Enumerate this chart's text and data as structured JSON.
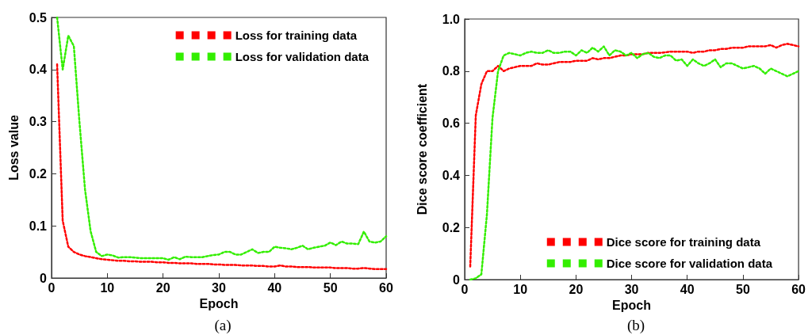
{
  "chart_data": [
    {
      "type": "line",
      "title": "(a)",
      "xlabel": "Epoch",
      "ylabel": "Loss value",
      "x": [
        1,
        2,
        3,
        4,
        5,
        6,
        7,
        8,
        9,
        10,
        11,
        12,
        13,
        14,
        15,
        16,
        17,
        18,
        19,
        20,
        21,
        22,
        23,
        24,
        25,
        26,
        27,
        28,
        29,
        30,
        31,
        32,
        33,
        34,
        35,
        36,
        37,
        38,
        39,
        40,
        41,
        42,
        43,
        44,
        45,
        46,
        47,
        48,
        49,
        50,
        51,
        52,
        53,
        54,
        55,
        56,
        57,
        58,
        59,
        60
      ],
      "series": [
        {
          "name": "Loss for training data",
          "color": "#ff0000",
          "values": [
            0.41,
            0.11,
            0.06,
            0.05,
            0.045,
            0.042,
            0.04,
            0.038,
            0.036,
            0.035,
            0.034,
            0.033,
            0.033,
            0.032,
            0.032,
            0.031,
            0.031,
            0.031,
            0.03,
            0.03,
            0.029,
            0.029,
            0.028,
            0.028,
            0.028,
            0.027,
            0.027,
            0.027,
            0.026,
            0.026,
            0.025,
            0.025,
            0.025,
            0.024,
            0.024,
            0.024,
            0.023,
            0.023,
            0.022,
            0.022,
            0.024,
            0.022,
            0.022,
            0.021,
            0.021,
            0.021,
            0.02,
            0.02,
            0.02,
            0.02,
            0.019,
            0.019,
            0.019,
            0.018,
            0.018,
            0.019,
            0.018,
            0.017,
            0.017,
            0.017
          ]
        },
        {
          "name": "Loss for validation data",
          "color": "#33ee00",
          "values": [
            0.5,
            0.4,
            0.465,
            0.445,
            0.3,
            0.17,
            0.09,
            0.05,
            0.042,
            0.045,
            0.043,
            0.039,
            0.04,
            0.04,
            0.039,
            0.038,
            0.038,
            0.038,
            0.038,
            0.038,
            0.035,
            0.04,
            0.036,
            0.041,
            0.04,
            0.04,
            0.04,
            0.042,
            0.044,
            0.045,
            0.05,
            0.05,
            0.045,
            0.045,
            0.05,
            0.055,
            0.048,
            0.05,
            0.05,
            0.06,
            0.058,
            0.057,
            0.055,
            0.058,
            0.062,
            0.055,
            0.058,
            0.06,
            0.062,
            0.068,
            0.063,
            0.07,
            0.066,
            0.066,
            0.065,
            0.089,
            0.07,
            0.068,
            0.07,
            0.08
          ]
        }
      ],
      "xlim": [
        0,
        60
      ],
      "xticks": [
        0,
        10,
        20,
        30,
        40,
        50,
        60
      ],
      "ylim": [
        0,
        0.5
      ],
      "yticks": [
        0,
        0.1,
        0.2,
        0.3,
        0.4,
        0.5
      ],
      "grid": false,
      "legend": "top right",
      "marker": "none",
      "line_style": "dotted"
    },
    {
      "type": "line",
      "title": "(b)",
      "xlabel": "Epoch",
      "ylabel": "Dice score coefficient",
      "x": [
        1,
        2,
        3,
        4,
        5,
        6,
        7,
        8,
        9,
        10,
        11,
        12,
        13,
        14,
        15,
        16,
        17,
        18,
        19,
        20,
        21,
        22,
        23,
        24,
        25,
        26,
        27,
        28,
        29,
        30,
        31,
        32,
        33,
        34,
        35,
        36,
        37,
        38,
        39,
        40,
        41,
        42,
        43,
        44,
        45,
        46,
        47,
        48,
        49,
        50,
        51,
        52,
        53,
        54,
        55,
        56,
        57,
        58,
        59,
        60
      ],
      "series": [
        {
          "name": "Dice score for training data",
          "color": "#ff0000",
          "values": [
            0.05,
            0.63,
            0.75,
            0.8,
            0.8,
            0.82,
            0.8,
            0.81,
            0.815,
            0.82,
            0.82,
            0.82,
            0.83,
            0.825,
            0.825,
            0.83,
            0.835,
            0.835,
            0.835,
            0.84,
            0.84,
            0.84,
            0.85,
            0.845,
            0.85,
            0.85,
            0.855,
            0.86,
            0.86,
            0.865,
            0.865,
            0.865,
            0.87,
            0.87,
            0.87,
            0.872,
            0.875,
            0.875,
            0.875,
            0.875,
            0.87,
            0.875,
            0.875,
            0.88,
            0.88,
            0.885,
            0.885,
            0.89,
            0.89,
            0.89,
            0.895,
            0.895,
            0.895,
            0.895,
            0.9,
            0.89,
            0.9,
            0.905,
            0.9,
            0.895
          ]
        },
        {
          "name": "Dice score for validation data",
          "color": "#33ee00",
          "values": [
            0,
            0.005,
            0.02,
            0.25,
            0.62,
            0.8,
            0.86,
            0.87,
            0.865,
            0.86,
            0.87,
            0.875,
            0.87,
            0.87,
            0.88,
            0.87,
            0.87,
            0.875,
            0.875,
            0.86,
            0.88,
            0.87,
            0.89,
            0.875,
            0.895,
            0.86,
            0.88,
            0.875,
            0.86,
            0.87,
            0.85,
            0.865,
            0.87,
            0.855,
            0.85,
            0.86,
            0.86,
            0.84,
            0.845,
            0.82,
            0.845,
            0.83,
            0.82,
            0.83,
            0.845,
            0.815,
            0.83,
            0.83,
            0.82,
            0.81,
            0.815,
            0.82,
            0.81,
            0.79,
            0.81,
            0.8,
            0.79,
            0.78,
            0.79,
            0.8
          ]
        }
      ],
      "xlim": [
        0,
        60
      ],
      "xticks": [
        0,
        10,
        20,
        30,
        40,
        50,
        60
      ],
      "ylim": [
        0,
        1
      ],
      "yticks": [
        0,
        0.2,
        0.4,
        0.6,
        0.8,
        {
          "value": 1,
          "label": "1.0"
        }
      ],
      "grid": false,
      "legend": "bottom right",
      "marker": "none",
      "line_style": "dotted"
    }
  ]
}
